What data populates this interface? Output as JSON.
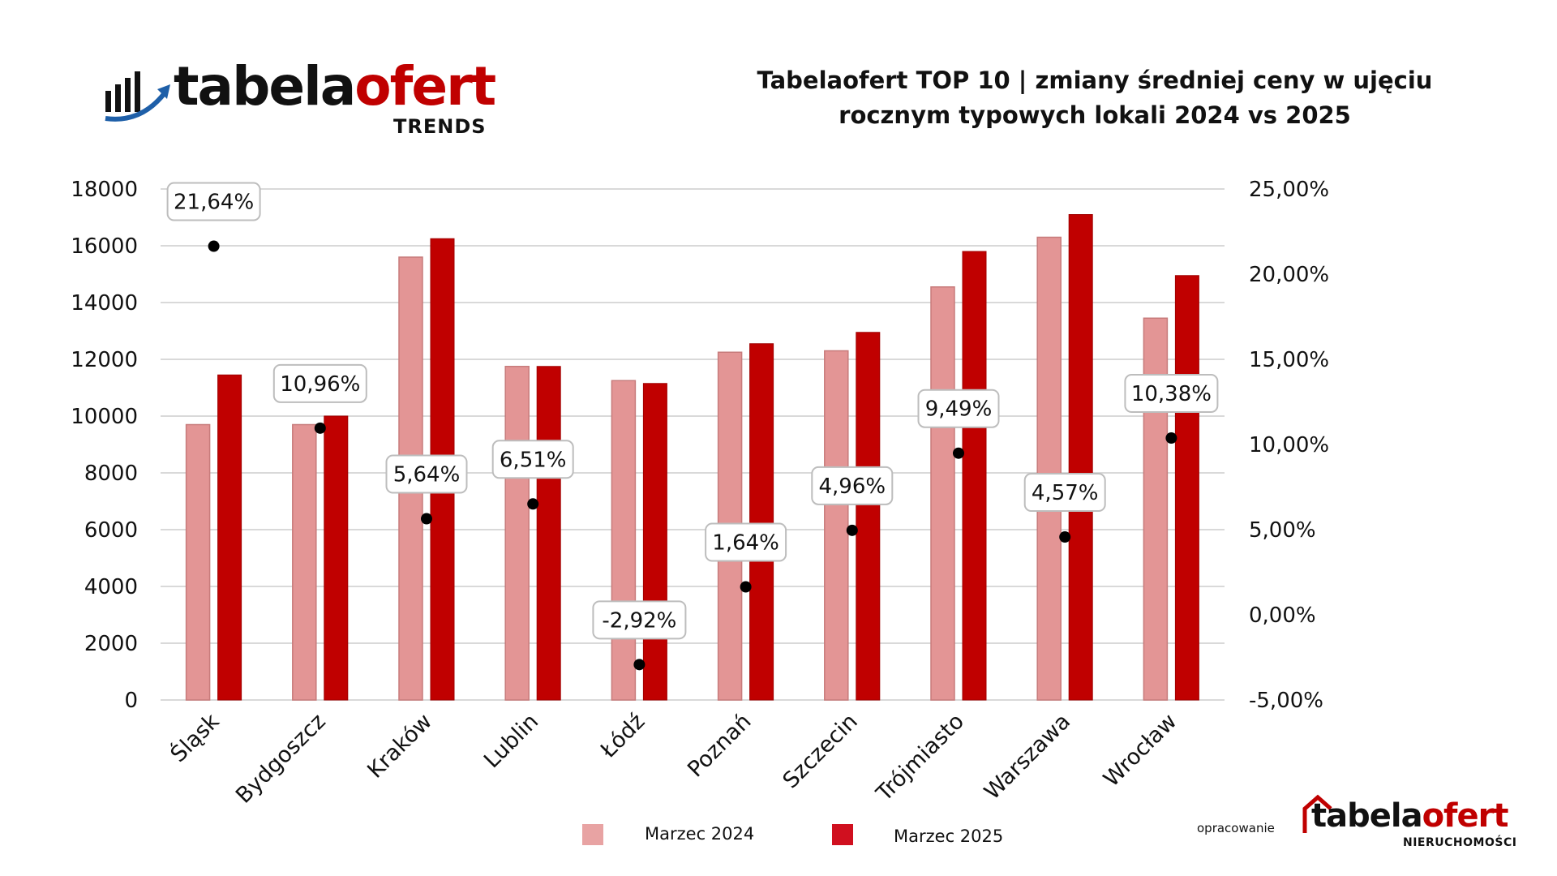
{
  "header": {
    "logo_dark": "tabela",
    "logo_red": "ofert",
    "logo_sub": "TRENDS",
    "title_line1": "Tabelaofert TOP 10 | zmiany średniej ceny w ujęciu",
    "title_line2": "rocznym typowych lokali 2024 vs 2025"
  },
  "footer": {
    "prepared_by": "opracowanie",
    "logo_dark": "tabela",
    "logo_red": "ofert",
    "logo_sub": "NIERUCHOMOŚCI"
  },
  "colors": {
    "series_2024": "#e39595",
    "series_2025": "#c00000",
    "brand_red": "#c00000",
    "brand_blue": "#1e5fa8"
  },
  "chart_data": {
    "type": "bar",
    "categories": [
      "Śląsk",
      "Bydgoszcz",
      "Kraków",
      "Lublin",
      "Łódź",
      "Poznań",
      "Szczecin",
      "Trójmiasto",
      "Warszawa",
      "Wrocław"
    ],
    "series": [
      {
        "name": "Marzec 2024",
        "values": [
          9700,
          9700,
          15600,
          11750,
          11250,
          12250,
          12300,
          14550,
          16300,
          13450
        ]
      },
      {
        "name": "Marzec 2025",
        "values": [
          11450,
          10000,
          16250,
          11750,
          11150,
          12550,
          12950,
          15800,
          17100,
          14950
        ]
      }
    ],
    "change_pct": {
      "values": [
        21.64,
        10.96,
        5.64,
        6.51,
        -2.92,
        1.64,
        4.96,
        9.49,
        4.57,
        10.38
      ],
      "labels": [
        "21,64%",
        "10,96%",
        "5,64%",
        "6,51%",
        "-2,92%",
        "1,64%",
        "4,96%",
        "9,49%",
        "4,57%",
        "10,38%"
      ]
    },
    "y_left": {
      "min": 0,
      "max": 18000,
      "ticks": [
        "0",
        "2000",
        "4000",
        "6000",
        "8000",
        "10000",
        "12000",
        "14000",
        "16000",
        "18000"
      ]
    },
    "y_right": {
      "min": -5,
      "max": 25,
      "ticks": [
        "-5,00%",
        "0,00%",
        "5,00%",
        "10,00%",
        "15,00%",
        "20,00%",
        "25,00%"
      ]
    },
    "grid": true,
    "legend_position": "bottom"
  }
}
